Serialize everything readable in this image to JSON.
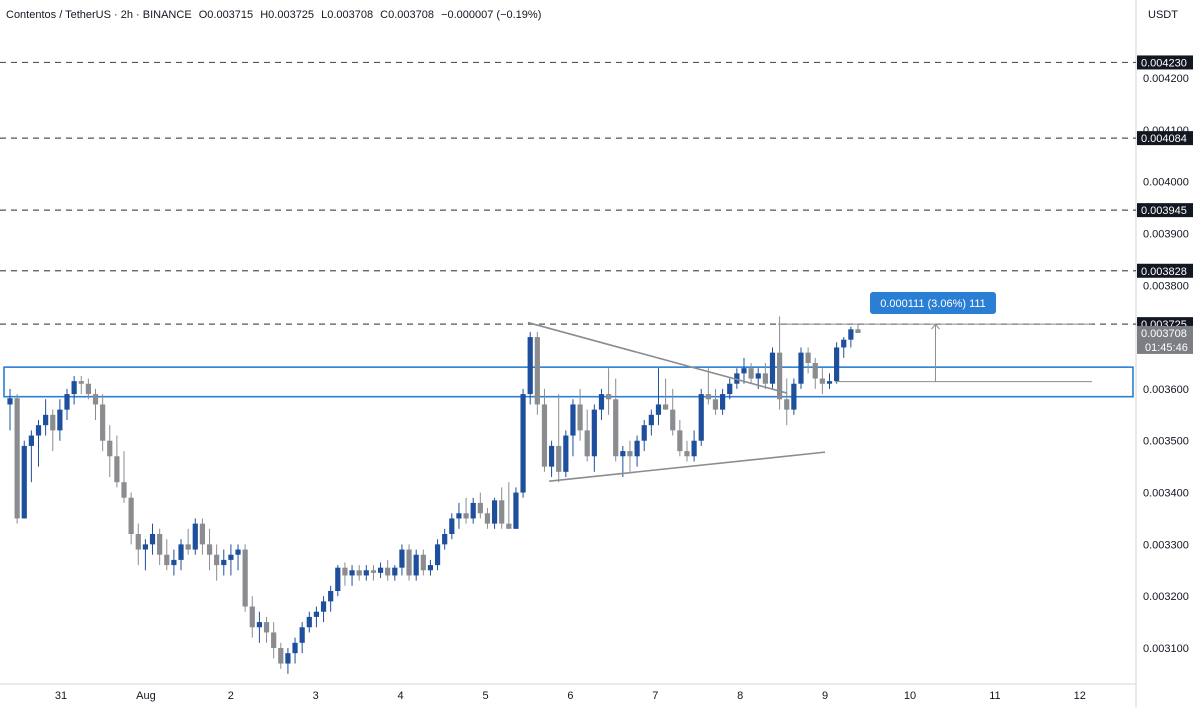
{
  "header": {
    "symbol": "Contentos / TetherUS · 2h · BINANCE",
    "open": "O0.003715",
    "high": "H0.003725",
    "low": "L0.003708",
    "close": "C0.003708",
    "change": "−0.000007 (−0.19%)"
  },
  "axis_unit": "USDT",
  "countdown": "01:45:46",
  "measure_label": "0.000111 (3.06%) 111",
  "colors": {
    "up": "#1e4f9c",
    "down": "#8a8c90",
    "zone": "#2a7fd4",
    "dashed": "#555555",
    "label_bg": "#131722",
    "last_price_bg": "#7c7e84",
    "measure_bg": "#2a7fd4"
  },
  "chart_data": {
    "type": "candlestick",
    "x_ticks": [
      "31",
      "Aug",
      "2",
      "3",
      "4",
      "5",
      "6",
      "7",
      "8",
      "9",
      "10",
      "11",
      "12"
    ],
    "y_ticks": [
      "0.003100",
      "0.003200",
      "0.003300",
      "0.003400",
      "0.003500",
      "0.003600",
      "0.003700",
      "0.003800",
      "0.003900",
      "0.004000",
      "0.004100",
      "0.004200"
    ],
    "ylim": [
      0.00303,
      0.00431
    ],
    "last_price": 0.003708,
    "horizontal_levels": [
      {
        "value": 0.00423,
        "label": "0.004230"
      },
      {
        "value": 0.004084,
        "label": "0.004084"
      },
      {
        "value": 0.003945,
        "label": "0.003945"
      },
      {
        "value": 0.003828,
        "label": "0.003828"
      },
      {
        "value": 0.003725,
        "label": "0.003725"
      }
    ],
    "current_label": "0.003708",
    "zone": {
      "from": 0.003585,
      "to": 0.003642
    },
    "triangle": {
      "upper": [
        [
          5.5,
          0.003728
        ],
        [
          8.55,
          0.003592
        ]
      ],
      "lower": [
        [
          5.75,
          0.003422
        ],
        [
          9.0,
          0.003478
        ]
      ]
    },
    "measure": {
      "from": 0.003614,
      "to": 0.003725,
      "at": 10.3
    },
    "candles": [
      [
        0.00357,
        0.0036,
        0.00352,
        0.003582
      ],
      [
        0.003582,
        0.00359,
        0.00334,
        0.00335
      ],
      [
        0.00335,
        0.0035,
        0.00335,
        0.00349
      ],
      [
        0.00349,
        0.00352,
        0.00342,
        0.00351
      ],
      [
        0.00351,
        0.00354,
        0.00345,
        0.00353
      ],
      [
        0.00353,
        0.00358,
        0.00351,
        0.00355
      ],
      [
        0.00355,
        0.00356,
        0.00348,
        0.00352
      ],
      [
        0.00352,
        0.00358,
        0.0035,
        0.00356
      ],
      [
        0.00356,
        0.0036,
        0.00354,
        0.00359
      ],
      [
        0.00359,
        0.003625,
        0.00357,
        0.003615
      ],
      [
        0.003615,
        0.003625,
        0.00359,
        0.00361
      ],
      [
        0.00361,
        0.00362,
        0.00358,
        0.00359
      ],
      [
        0.00359,
        0.0036,
        0.00354,
        0.00357
      ],
      [
        0.00357,
        0.00359,
        0.00348,
        0.0035
      ],
      [
        0.0035,
        0.00353,
        0.00343,
        0.00347
      ],
      [
        0.00347,
        0.00351,
        0.00341,
        0.00342
      ],
      [
        0.00342,
        0.00348,
        0.00338,
        0.00339
      ],
      [
        0.00339,
        0.0034,
        0.0033,
        0.00332
      ],
      [
        0.00332,
        0.00334,
        0.00326,
        0.00329
      ],
      [
        0.00329,
        0.00331,
        0.00325,
        0.0033
      ],
      [
        0.0033,
        0.00334,
        0.00328,
        0.00332
      ],
      [
        0.00332,
        0.00333,
        0.00326,
        0.00328
      ],
      [
        0.00328,
        0.00331,
        0.00325,
        0.00326
      ],
      [
        0.00326,
        0.00329,
        0.00324,
        0.00327
      ],
      [
        0.00327,
        0.00331,
        0.00325,
        0.0033
      ],
      [
        0.0033,
        0.00333,
        0.00328,
        0.00329
      ],
      [
        0.00329,
        0.00335,
        0.00328,
        0.00334
      ],
      [
        0.00334,
        0.00335,
        0.00328,
        0.0033
      ],
      [
        0.0033,
        0.00333,
        0.00325,
        0.00328
      ],
      [
        0.00328,
        0.0033,
        0.00323,
        0.00326
      ],
      [
        0.00326,
        0.00329,
        0.00324,
        0.00327
      ],
      [
        0.00327,
        0.0033,
        0.00324,
        0.00328
      ],
      [
        0.00328,
        0.0033,
        0.00325,
        0.00329
      ],
      [
        0.00329,
        0.0033,
        0.00317,
        0.00318
      ],
      [
        0.00318,
        0.0032,
        0.00312,
        0.00314
      ],
      [
        0.00314,
        0.00317,
        0.00311,
        0.00315
      ],
      [
        0.00315,
        0.00316,
        0.00311,
        0.00313
      ],
      [
        0.00313,
        0.00315,
        0.00308,
        0.0031
      ],
      [
        0.0031,
        0.00311,
        0.00306,
        0.00307
      ],
      [
        0.00307,
        0.0031,
        0.00305,
        0.00309
      ],
      [
        0.00309,
        0.00312,
        0.00307,
        0.00311
      ],
      [
        0.00311,
        0.00315,
        0.00309,
        0.00314
      ],
      [
        0.00314,
        0.00317,
        0.00313,
        0.00316
      ],
      [
        0.00316,
        0.00318,
        0.00314,
        0.00317
      ],
      [
        0.00317,
        0.0032,
        0.00315,
        0.00319
      ],
      [
        0.00319,
        0.00322,
        0.00317,
        0.00321
      ],
      [
        0.00321,
        0.00326,
        0.0032,
        0.003255
      ],
      [
        0.003255,
        0.003265,
        0.00322,
        0.00324
      ],
      [
        0.00324,
        0.00326,
        0.00322,
        0.00325
      ],
      [
        0.00325,
        0.00326,
        0.00323,
        0.00324
      ],
      [
        0.00324,
        0.00326,
        0.00323,
        0.00325
      ],
      [
        0.00325,
        0.00326,
        0.00323,
        0.003245
      ],
      [
        0.003245,
        0.003265,
        0.003235,
        0.003255
      ],
      [
        0.003255,
        0.00327,
        0.00323,
        0.00324
      ],
      [
        0.00324,
        0.00326,
        0.00323,
        0.003255
      ],
      [
        0.003255,
        0.0033,
        0.00324,
        0.00329
      ],
      [
        0.00329,
        0.0033,
        0.00323,
        0.00324
      ],
      [
        0.00324,
        0.00329,
        0.00323,
        0.00328
      ],
      [
        0.00328,
        0.00329,
        0.00324,
        0.00325
      ],
      [
        0.00325,
        0.00327,
        0.00324,
        0.00326
      ],
      [
        0.00326,
        0.00331,
        0.00325,
        0.0033
      ],
      [
        0.0033,
        0.00333,
        0.00329,
        0.00332
      ],
      [
        0.00332,
        0.00336,
        0.00331,
        0.00335
      ],
      [
        0.00335,
        0.00338,
        0.00333,
        0.00336
      ],
      [
        0.00336,
        0.00339,
        0.00334,
        0.00335
      ],
      [
        0.00335,
        0.00339,
        0.00334,
        0.00338
      ],
      [
        0.00338,
        0.0034,
        0.00335,
        0.00336
      ],
      [
        0.00336,
        0.00337,
        0.00333,
        0.00334
      ],
      [
        0.00334,
        0.00339,
        0.00333,
        0.003385
      ],
      [
        0.003385,
        0.00341,
        0.00333,
        0.00334
      ],
      [
        0.00334,
        0.00342,
        0.00333,
        0.00333
      ],
      [
        0.00333,
        0.00341,
        0.00333,
        0.0034
      ],
      [
        0.0034,
        0.0036,
        0.00339,
        0.00359
      ],
      [
        0.00359,
        0.00371,
        0.00357,
        0.0037
      ],
      [
        0.0037,
        0.00371,
        0.00355,
        0.00357
      ],
      [
        0.00357,
        0.0036,
        0.00344,
        0.00345
      ],
      [
        0.00345,
        0.0035,
        0.00343,
        0.00349
      ],
      [
        0.00349,
        0.00359,
        0.00342,
        0.00344
      ],
      [
        0.00344,
        0.00352,
        0.00343,
        0.00351
      ],
      [
        0.00351,
        0.00358,
        0.00347,
        0.00357
      ],
      [
        0.00357,
        0.0036,
        0.0035,
        0.00352
      ],
      [
        0.00352,
        0.00356,
        0.00346,
        0.00347
      ],
      [
        0.00347,
        0.00357,
        0.00344,
        0.00356
      ],
      [
        0.00356,
        0.0036,
        0.00354,
        0.00359
      ],
      [
        0.00359,
        0.00364,
        0.00355,
        0.00358
      ],
      [
        0.00358,
        0.00362,
        0.00346,
        0.00347
      ],
      [
        0.00347,
        0.00349,
        0.00343,
        0.00348
      ],
      [
        0.00348,
        0.0035,
        0.00344,
        0.00347
      ],
      [
        0.00347,
        0.00351,
        0.00345,
        0.0035
      ],
      [
        0.0035,
        0.00354,
        0.00348,
        0.00353
      ],
      [
        0.00353,
        0.00356,
        0.00351,
        0.00355
      ],
      [
        0.00355,
        0.00364,
        0.00353,
        0.00357
      ],
      [
        0.00357,
        0.00362,
        0.00356,
        0.00356
      ],
      [
        0.00356,
        0.0036,
        0.00351,
        0.00352
      ],
      [
        0.00352,
        0.00354,
        0.00347,
        0.00348
      ],
      [
        0.00348,
        0.0035,
        0.00346,
        0.00347
      ],
      [
        0.00347,
        0.00352,
        0.00346,
        0.0035
      ],
      [
        0.0035,
        0.0036,
        0.00349,
        0.00359
      ],
      [
        0.00359,
        0.00364,
        0.00357,
        0.00358
      ],
      [
        0.00358,
        0.0036,
        0.00355,
        0.00356
      ],
      [
        0.00356,
        0.0036,
        0.00355,
        0.00359
      ],
      [
        0.00359,
        0.00362,
        0.00358,
        0.00361
      ],
      [
        0.00361,
        0.00364,
        0.0036,
        0.00363
      ],
      [
        0.00363,
        0.00366,
        0.00361,
        0.00364
      ],
      [
        0.00364,
        0.00365,
        0.00361,
        0.00362
      ],
      [
        0.00362,
        0.00364,
        0.0036,
        0.00363
      ],
      [
        0.00363,
        0.00365,
        0.0036,
        0.00361
      ],
      [
        0.00361,
        0.00368,
        0.0036,
        0.00367
      ],
      [
        0.00367,
        0.00374,
        0.00356,
        0.00358
      ],
      [
        0.00358,
        0.00362,
        0.00353,
        0.00356
      ],
      [
        0.00356,
        0.00362,
        0.00355,
        0.00361
      ],
      [
        0.00361,
        0.00368,
        0.0036,
        0.00367
      ],
      [
        0.00367,
        0.00368,
        0.00363,
        0.00365
      ],
      [
        0.00365,
        0.00366,
        0.0036,
        0.00362
      ],
      [
        0.00362,
        0.00364,
        0.00359,
        0.00361
      ],
      [
        0.00361,
        0.00363,
        0.0036,
        0.003615
      ],
      [
        0.003615,
        0.00369,
        0.00361,
        0.00368
      ],
      [
        0.00368,
        0.0037,
        0.00366,
        0.003695
      ],
      [
        0.003695,
        0.00372,
        0.00368,
        0.003715
      ],
      [
        0.003715,
        0.003725,
        0.003708,
        0.003708
      ]
    ]
  }
}
